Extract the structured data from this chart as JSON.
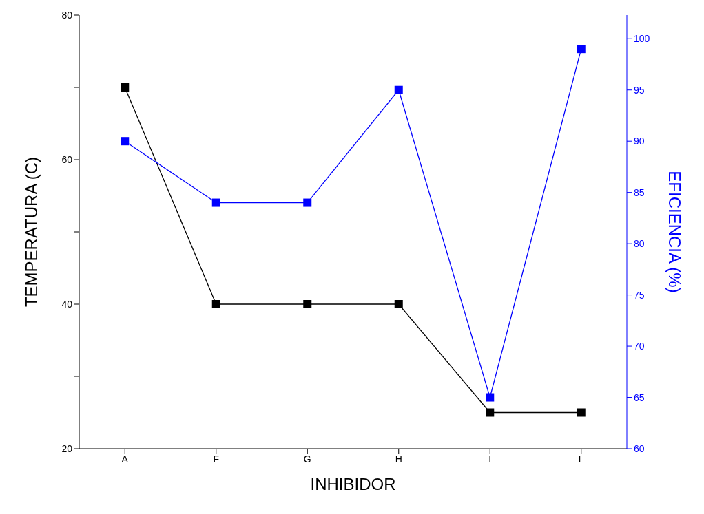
{
  "chart_data": {
    "type": "line",
    "xlabel": "INHIBIDOR",
    "ylabel": "TEMPERATURA (C)",
    "y2label": "EFICIENCIA (%)",
    "categories": [
      "A",
      "F",
      "G",
      "H",
      "I",
      "L"
    ],
    "series": [
      {
        "color": "#000000",
        "values": [
          70,
          40,
          40,
          40,
          25,
          25
        ]
      },
      {
        "color": "#0000ff",
        "values": [
          90,
          84,
          84,
          95,
          65,
          99
        ],
        "axis": "y2"
      }
    ],
    "ylim": [
      20,
      80
    ],
    "yticks": [
      20,
      {
        "value": 30,
        "label": null
      },
      40,
      {
        "value": 50,
        "label": null
      },
      60,
      {
        "value": 70,
        "label": null
      },
      80
    ],
    "y2lim": [
      60,
      102.3
    ],
    "y2ticks": [
      60,
      65,
      70,
      75,
      80,
      85,
      90,
      95,
      100
    ],
    "marker": "square",
    "line_style": "solid"
  }
}
